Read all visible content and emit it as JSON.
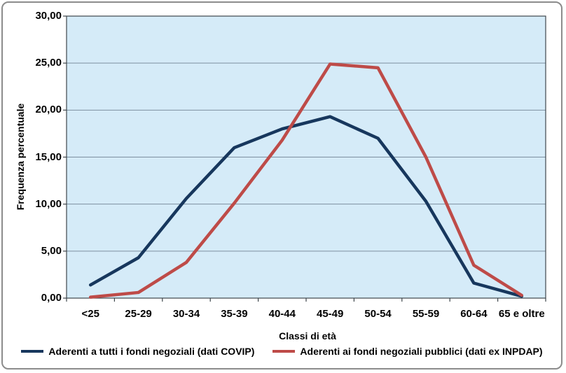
{
  "chart_data": {
    "type": "line",
    "title": "",
    "xlabel": "Classi di età",
    "ylabel": "Frequenza percentuale",
    "categories": [
      "<25",
      "25-29",
      "30-34",
      "35-39",
      "40-44",
      "45-49",
      "50-54",
      "55-59",
      "60-64",
      "65 e oltre"
    ],
    "series": [
      {
        "name": "Aderenti a tutti i fondi negoziali (dati COVIP)",
        "color": "#17375D",
        "values": [
          1.4,
          4.3,
          10.6,
          16.0,
          18.0,
          19.3,
          17.0,
          10.3,
          1.6,
          0.2
        ]
      },
      {
        "name": "Aderenti ai fondi negoziali pubblici (dati ex INPDAP)",
        "color": "#BE4B48",
        "values": [
          0.1,
          0.6,
          3.8,
          10.1,
          16.8,
          24.9,
          24.5,
          15.0,
          3.5,
          0.3
        ]
      }
    ],
    "ylim": [
      0,
      30
    ],
    "y_tick_step": 5,
    "y_tick_labels": [
      "0,00",
      "5,00",
      "10,00",
      "15,00",
      "20,00",
      "25,00",
      "30,00"
    ],
    "grid": true,
    "legend_position": "bottom",
    "colors": {
      "plot_background": "#D5EBF8",
      "gridline": "#7D8FA0",
      "axis": "#3F474C",
      "frame_border": "#8C8C8C"
    }
  }
}
